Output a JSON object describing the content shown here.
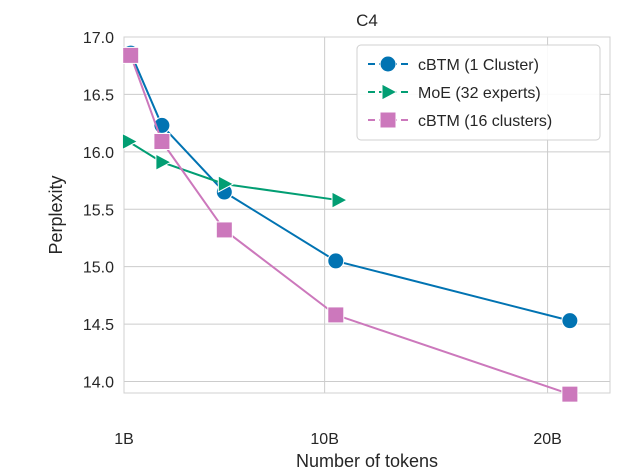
{
  "chart_data": {
    "type": "line",
    "title": "C4",
    "xlabel": "Number of tokens",
    "ylabel": "Perplexity",
    "xlim": [
      1,
      22.8
    ],
    "ylim": [
      13.9,
      17.0
    ],
    "x_ticks": [
      {
        "value": 1,
        "label": "1B"
      },
      {
        "value": 10,
        "label": "10B"
      },
      {
        "value": 20,
        "label": "20B"
      }
    ],
    "y_ticks": [
      {
        "value": 14.0,
        "label": "14.0"
      },
      {
        "value": 14.5,
        "label": "14.5"
      },
      {
        "value": 15.0,
        "label": "15.0"
      },
      {
        "value": 15.5,
        "label": "15.5"
      },
      {
        "value": 16.0,
        "label": "16.0"
      },
      {
        "value": 16.5,
        "label": "16.5"
      },
      {
        "value": 17.0,
        "label": "17.0"
      }
    ],
    "grid": true,
    "legend_position": "top-right",
    "series": [
      {
        "name": "cBTM (1 Cluster)",
        "color": "#0173b2",
        "marker": "circle",
        "points": [
          [
            1.3,
            16.86
          ],
          [
            2.7,
            16.23
          ],
          [
            5.5,
            15.65
          ],
          [
            10.5,
            15.05
          ],
          [
            21.0,
            14.53
          ]
        ]
      },
      {
        "name": "MoE (32 experts)",
        "color": "#029e73",
        "marker": "triangle-right",
        "points": [
          [
            1.2,
            16.09
          ],
          [
            2.7,
            15.91
          ],
          [
            5.5,
            15.72
          ],
          [
            10.6,
            15.58
          ]
        ]
      },
      {
        "name": "cBTM (16 clusters)",
        "color": "#cc78bc",
        "marker": "square",
        "points": [
          [
            1.3,
            16.84
          ],
          [
            2.7,
            16.09
          ],
          [
            5.5,
            15.32
          ],
          [
            10.5,
            14.58
          ],
          [
            21.0,
            13.89
          ]
        ]
      }
    ]
  }
}
